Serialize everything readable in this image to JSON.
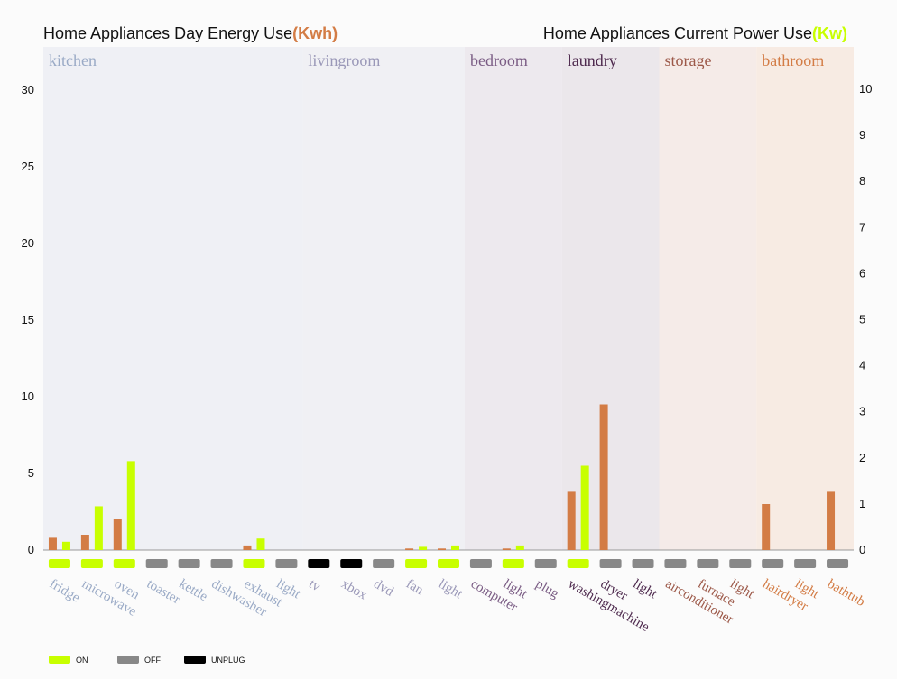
{
  "chart_data": {
    "type": "bar",
    "title_left": "Home Appliances Day Energy Use",
    "title_left_unit": "(Kwh)",
    "title_right": "Home Appliances Current Power Use",
    "title_right_unit": "(Kw)",
    "y_left": {
      "min": 0,
      "max": 30,
      "ticks": [
        "0",
        "5",
        "10",
        "15",
        "20",
        "25",
        "30"
      ]
    },
    "y_right": {
      "min": 0,
      "max": 10,
      "ticks": [
        "0",
        "1",
        "2",
        "3",
        "4",
        "5",
        "6",
        "7",
        "8",
        "9",
        "10"
      ]
    },
    "colors": {
      "energy": "#d37c45",
      "power": "#c8ff00",
      "on": "#c8ff00",
      "off": "#888888",
      "unplug": "#000000"
    },
    "rooms": [
      {
        "name": "kitchen",
        "color": "#9aaac6",
        "bg": "#eff0f5",
        "start": 0,
        "count": 8
      },
      {
        "name": "livingroom",
        "color": "#9a98b8",
        "bg": "#f0f0f4",
        "start": 8,
        "count": 5
      },
      {
        "name": "bedroom",
        "color": "#7a5c84",
        "bg": "#ede9ee",
        "start": 13,
        "count": 3
      },
      {
        "name": "laundry",
        "color": "#4e2a4e",
        "bg": "#ebe7eb",
        "start": 16,
        "count": 3
      },
      {
        "name": "storage",
        "color": "#9c5848",
        "bg": "#f5ebe8",
        "start": 19,
        "count": 3
      },
      {
        "name": "bathroom",
        "color": "#d37c45",
        "bg": "#f7ebe3",
        "start": 22,
        "count": 3
      }
    ],
    "appliances": [
      {
        "name": "fridge",
        "room": "kitchen",
        "energy": 0.8,
        "power": 0.18,
        "status": "on"
      },
      {
        "name": "microwave",
        "room": "kitchen",
        "energy": 1.0,
        "power": 0.95,
        "status": "on"
      },
      {
        "name": "oven",
        "room": "kitchen",
        "energy": 2.0,
        "power": 1.93,
        "status": "on"
      },
      {
        "name": "toaster",
        "room": "kitchen",
        "energy": 0,
        "power": 0,
        "status": "off"
      },
      {
        "name": "kettle",
        "room": "kitchen",
        "energy": 0,
        "power": 0,
        "status": "off"
      },
      {
        "name": "dishwasher",
        "room": "kitchen",
        "energy": 0,
        "power": 0,
        "status": "off"
      },
      {
        "name": "exhaust",
        "room": "kitchen",
        "energy": 0.3,
        "power": 0.25,
        "status": "on"
      },
      {
        "name": "light",
        "room": "kitchen",
        "energy": 0,
        "power": 0,
        "status": "off"
      },
      {
        "name": "tv",
        "room": "livingroom",
        "energy": 0,
        "power": 0,
        "status": "unplug"
      },
      {
        "name": "xbox",
        "room": "livingroom",
        "energy": 0,
        "power": 0,
        "status": "unplug"
      },
      {
        "name": "dvd",
        "room": "livingroom",
        "energy": 0,
        "power": 0,
        "status": "off"
      },
      {
        "name": "fan",
        "room": "livingroom",
        "energy": 0.1,
        "power": 0.07,
        "status": "on"
      },
      {
        "name": "light",
        "room": "livingroom",
        "energy": 0.1,
        "power": 0.1,
        "status": "on"
      },
      {
        "name": "computer",
        "room": "bedroom",
        "energy": 0,
        "power": 0,
        "status": "off"
      },
      {
        "name": "light",
        "room": "bedroom",
        "energy": 0.1,
        "power": 0.1,
        "status": "on"
      },
      {
        "name": "plug",
        "room": "bedroom",
        "energy": 0,
        "power": 0,
        "status": "off"
      },
      {
        "name": "washingmachine",
        "room": "laundry",
        "energy": 3.8,
        "power": 1.83,
        "status": "on"
      },
      {
        "name": "dryer",
        "room": "laundry",
        "energy": 9.5,
        "power": 0,
        "status": "off"
      },
      {
        "name": "light",
        "room": "laundry",
        "energy": 0,
        "power": 0,
        "status": "off"
      },
      {
        "name": "airconditioner",
        "room": "storage",
        "energy": 0,
        "power": 0,
        "status": "off"
      },
      {
        "name": "furnace",
        "room": "storage",
        "energy": 0,
        "power": 0,
        "status": "off"
      },
      {
        "name": "light",
        "room": "storage",
        "energy": 0,
        "power": 0,
        "status": "off"
      },
      {
        "name": "hairdryer",
        "room": "bathroom",
        "energy": 3.0,
        "power": 0,
        "status": "off"
      },
      {
        "name": "light",
        "room": "bathroom",
        "energy": 0,
        "power": 0,
        "status": "off"
      },
      {
        "name": "bathtub",
        "room": "bathroom",
        "energy": 3.8,
        "power": 0,
        "status": "off"
      }
    ],
    "legend": [
      {
        "key": "on",
        "label": "ON"
      },
      {
        "key": "off",
        "label": "OFF"
      },
      {
        "key": "unplug",
        "label": "UNPLUG"
      }
    ]
  }
}
